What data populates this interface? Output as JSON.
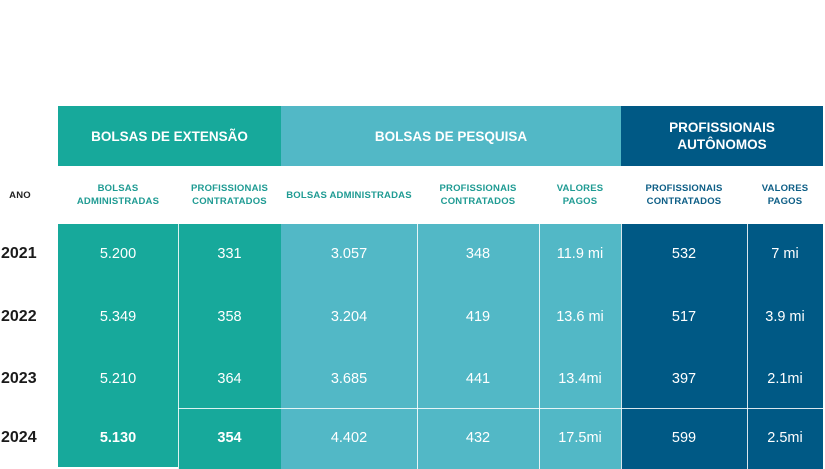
{
  "groups": {
    "extensao": "BOLSAS DE EXTENSÃO",
    "pesquisa": "BOLSAS DE PESQUISA",
    "autonomos_line1": "PROFISSIONAIS",
    "autonomos_line2": "AUTÔNOMOS"
  },
  "subheaders": {
    "ano": "ANO",
    "ext_bolsas_l1": "BOLSAS",
    "ext_bolsas_l2": "ADMINISTRADAS",
    "ext_prof_l1": "PROFISSIONAIS",
    "ext_prof_l2": "CONTRATADOS",
    "pesq_bolsas": "BOLSAS ADMINISTRADAS",
    "pesq_prof_l1": "PROFISSIONAIS",
    "pesq_prof_l2": "CONTRATADOS",
    "pesq_valores_l1": "VALORES",
    "pesq_valores_l2": "PAGOS",
    "aut_prof_l1": "PROFISSIONAIS",
    "aut_prof_l2": "CONTRATADOS",
    "aut_valores_l1": "VALORES",
    "aut_valores_l2": "PAGOS"
  },
  "rows": [
    {
      "ano": "2021",
      "ext_bolsas": "5.200",
      "ext_prof": "331",
      "pesq_bolsas": "3.057",
      "pesq_prof": "348",
      "pesq_valores": "11.9 mi",
      "aut_prof": "532",
      "aut_valores": "7 mi"
    },
    {
      "ano": "2022",
      "ext_bolsas": "5.349",
      "ext_prof": "358",
      "pesq_bolsas": "3.204",
      "pesq_prof": "419",
      "pesq_valores": "13.6 mi",
      "aut_prof": "517",
      "aut_valores": "3.9 mi"
    },
    {
      "ano": "2023",
      "ext_bolsas": "5.210",
      "ext_prof": "364",
      "pesq_bolsas": "3.685",
      "pesq_prof": "441",
      "pesq_valores": "13.4mi",
      "aut_prof": "397",
      "aut_valores": "2.1mi"
    },
    {
      "ano": "2024",
      "ext_bolsas": "5.130",
      "ext_prof": "354",
      "pesq_bolsas": "4.402",
      "pesq_prof": "432",
      "pesq_valores": "17.5mi",
      "aut_prof": "599",
      "aut_valores": "2.5mi"
    }
  ],
  "colors": {
    "extensao": "#17a99b",
    "pesquisa": "#52b8c6",
    "autonomos": "#005985"
  }
}
